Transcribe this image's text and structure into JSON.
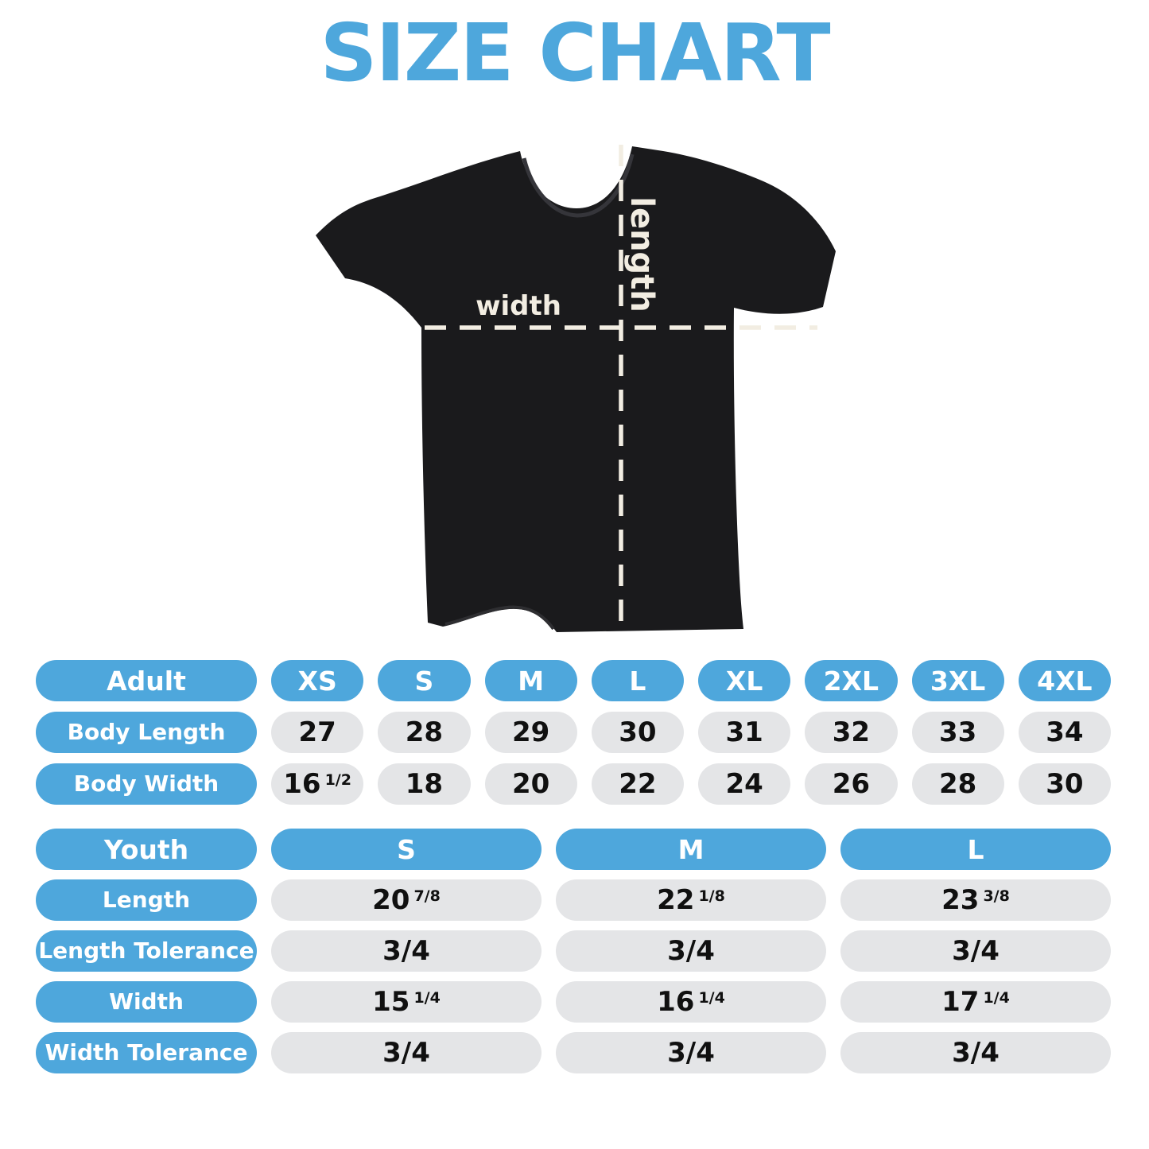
{
  "title": "SIZE CHART",
  "diagram": {
    "width_label": "width",
    "length_label": "length"
  },
  "chart_data": [
    {
      "type": "table",
      "id": "adult",
      "corner_header": "Adult",
      "columns": [
        "XS",
        "S",
        "M",
        "L",
        "XL",
        "2XL",
        "3XL",
        "4XL"
      ],
      "rows": [
        {
          "label": "Body Length",
          "values": [
            "27",
            "28",
            "29",
            "30",
            "31",
            "32",
            "33",
            "34"
          ]
        },
        {
          "label": "Body Width",
          "values": [
            "16 1/2",
            "18",
            "20",
            "22",
            "24",
            "26",
            "28",
            "30"
          ]
        }
      ]
    },
    {
      "type": "table",
      "id": "youth",
      "corner_header": "Youth",
      "columns": [
        "S",
        "M",
        "L"
      ],
      "rows": [
        {
          "label": "Length",
          "values": [
            "20 7/8",
            "22 1/8",
            "23 3/8"
          ]
        },
        {
          "label": "Length Tolerance",
          "values": [
            "3/4",
            "3/4",
            "3/4"
          ]
        },
        {
          "label": "Width",
          "values": [
            "15 1/4",
            "16 1/4",
            "17 1/4"
          ]
        },
        {
          "label": "Width Tolerance",
          "values": [
            "3/4",
            "3/4",
            "3/4"
          ]
        }
      ]
    }
  ],
  "colors": {
    "accent_blue": "#4EA7DC",
    "pill_gray": "#E4E5E7",
    "label_cream": "#F2EDE2",
    "shirt_black": "#1A1A1C"
  }
}
